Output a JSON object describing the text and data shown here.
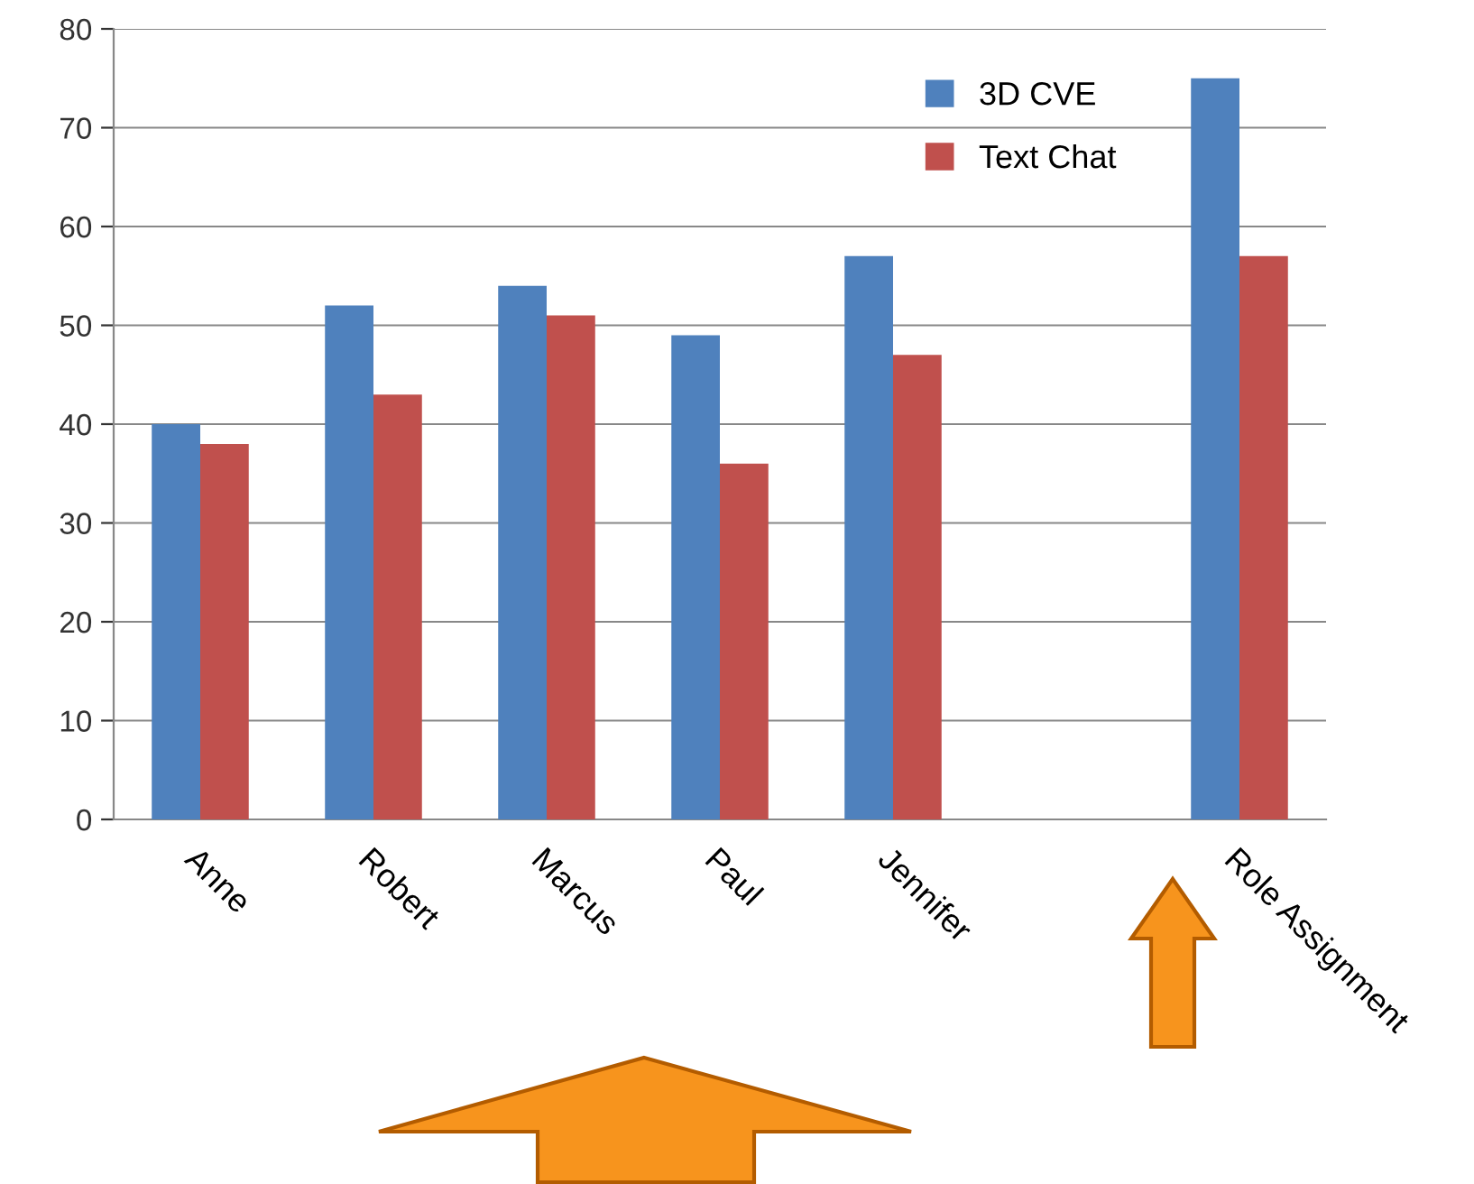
{
  "chart_data": {
    "type": "bar",
    "categories": [
      "Anne",
      "Robert",
      "Marcus",
      "Paul",
      "Jennifer",
      null,
      "Role Assignment"
    ],
    "series": [
      {
        "name": "3D CVE",
        "color": "#4f81bd",
        "values": [
          40,
          52,
          54,
          49,
          57,
          null,
          75
        ]
      },
      {
        "name": "Text Chat",
        "color": "#c0504d",
        "values": [
          38,
          43,
          51,
          36,
          47,
          null,
          57
        ]
      }
    ],
    "ylim": [
      0,
      80
    ],
    "yticks": [
      0,
      10,
      20,
      30,
      40,
      50,
      60,
      70,
      80
    ],
    "grid": "y",
    "legend": "top right"
  }
}
